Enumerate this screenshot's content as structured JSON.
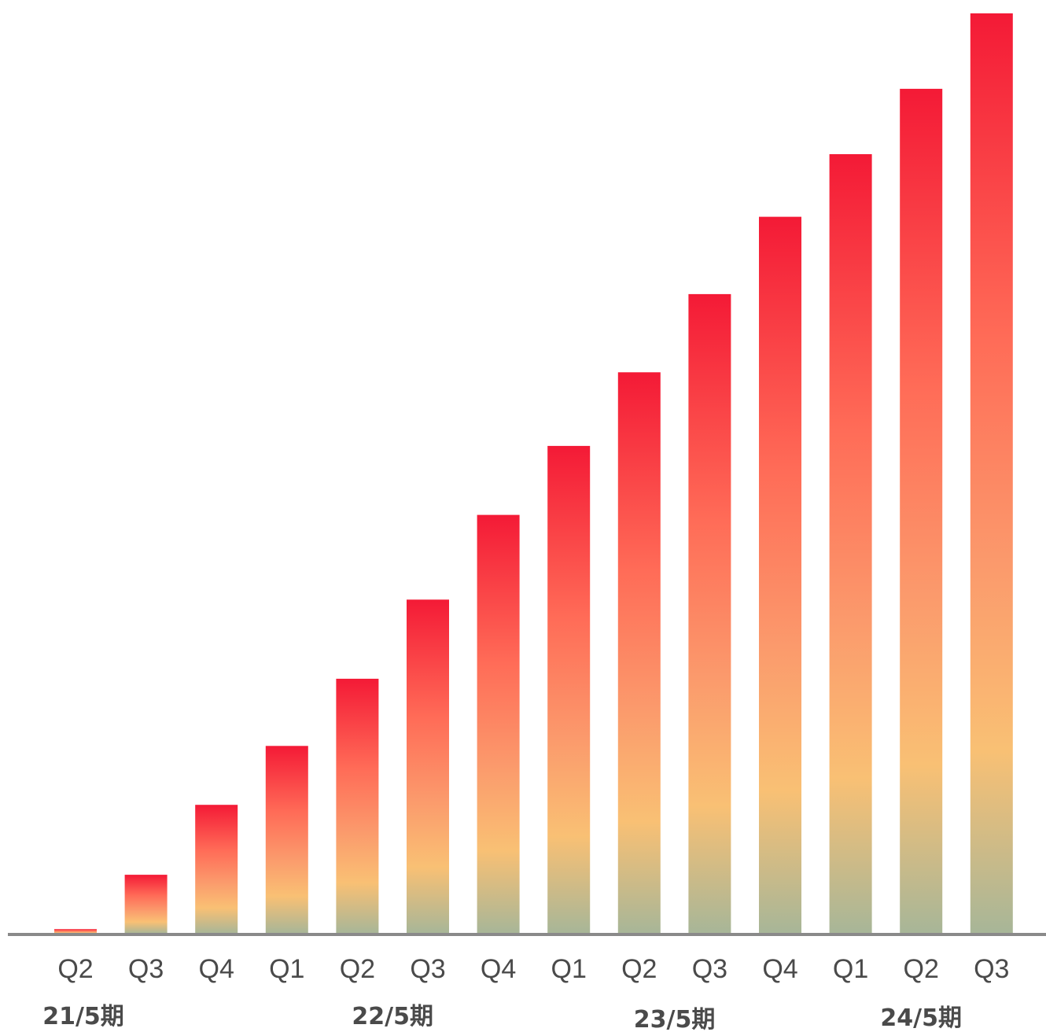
{
  "chart_data": {
    "type": "bar",
    "title": "",
    "xlabel": "",
    "ylabel": "",
    "categories": [
      "Q2",
      "Q3",
      "Q4",
      "Q1",
      "Q2",
      "Q3",
      "Q4",
      "Q1",
      "Q2",
      "Q3",
      "Q4",
      "Q1",
      "Q2",
      "Q3"
    ],
    "values": [
      0.5,
      6.4,
      14.0,
      20.4,
      27.7,
      36.3,
      45.5,
      53.0,
      61.0,
      69.5,
      77.9,
      84.7,
      91.8,
      100.0
    ],
    "ylim": [
      0,
      100
    ],
    "grid": false,
    "legend": "none",
    "groups": [
      {
        "label": "21/5期",
        "start": 0,
        "end": 2
      },
      {
        "label": "22/5期",
        "start": 3,
        "end": 6
      },
      {
        "label": "23/5期",
        "start": 7,
        "end": 10
      },
      {
        "label": "24/5期",
        "start": 11,
        "end": 13
      }
    ],
    "colors": {
      "bar_top": "#f41a36",
      "bar_mid_1": "#ff6b57",
      "bar_mid_2": "#fb9a6c",
      "bar_mid_3": "#f9c074",
      "bar_bottom": "#a7b698",
      "axis": "#8a8a8a",
      "text": "#4a4a4a"
    }
  }
}
